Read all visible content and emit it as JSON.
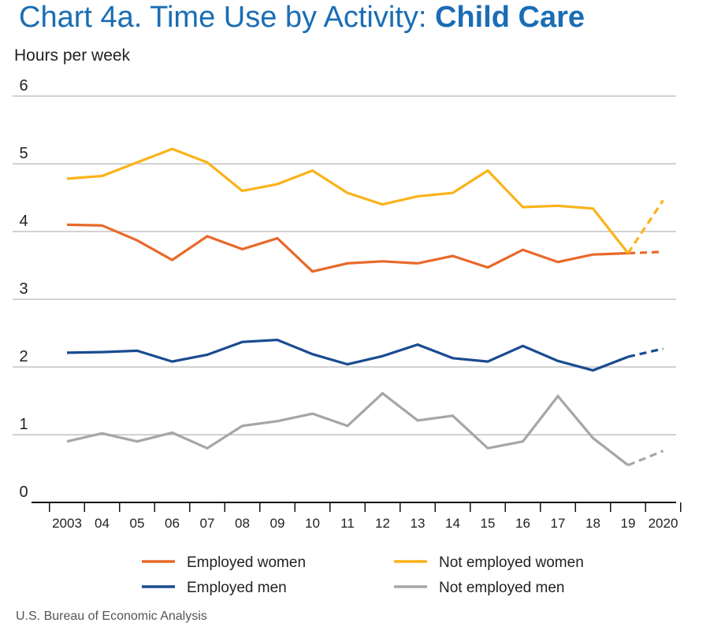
{
  "title_prefix": "Chart 4a. Time Use by Activity: ",
  "title_emphasis": "Child Care",
  "source": "U.S. Bureau of Economic Analysis",
  "chart_data": {
    "type": "line",
    "title": "Chart 4a. Time Use by Activity: Child Care",
    "ylabel": "Hours per week",
    "xlabel": "",
    "ylim": [
      0,
      6
    ],
    "yticks": [
      "0",
      "1",
      "2",
      "3",
      "4",
      "5",
      "6"
    ],
    "categories": [
      "2003",
      "04",
      "05",
      "06",
      "07",
      "08",
      "09",
      "10",
      "11",
      "12",
      "13",
      "14",
      "15",
      "16",
      "17",
      "18",
      "19",
      "2020"
    ],
    "grid": true,
    "legend_position": "bottom",
    "note": "2020 values shown as dashed segment",
    "series": [
      {
        "name": "Employed women",
        "color": "#e8692a",
        "values": [
          4.1,
          4.09,
          3.87,
          3.58,
          3.93,
          3.74,
          3.9,
          3.41,
          3.53,
          3.56,
          3.53,
          3.64,
          3.47,
          3.73,
          3.55,
          3.66,
          3.68,
          3.7
        ]
      },
      {
        "name": "Not employed women",
        "color": "#fbb31a",
        "values": [
          4.78,
          4.82,
          5.02,
          5.22,
          5.02,
          4.6,
          4.7,
          4.9,
          4.57,
          4.4,
          4.52,
          4.57,
          4.9,
          4.36,
          4.38,
          4.34,
          3.68,
          4.46
        ]
      },
      {
        "name": "Employed men",
        "color": "#1a4b91",
        "values": [
          2.21,
          2.22,
          2.24,
          2.08,
          2.18,
          2.37,
          2.4,
          2.19,
          2.04,
          2.16,
          2.33,
          2.13,
          2.08,
          2.31,
          2.09,
          1.95,
          2.15,
          2.27
        ]
      },
      {
        "name": "Not employed men",
        "color": "#a6a6a6",
        "values": [
          0.9,
          1.02,
          0.9,
          1.03,
          0.8,
          1.13,
          1.2,
          1.31,
          1.13,
          1.61,
          1.21,
          1.28,
          0.8,
          0.9,
          1.57,
          0.95,
          0.55,
          0.76
        ]
      }
    ]
  }
}
